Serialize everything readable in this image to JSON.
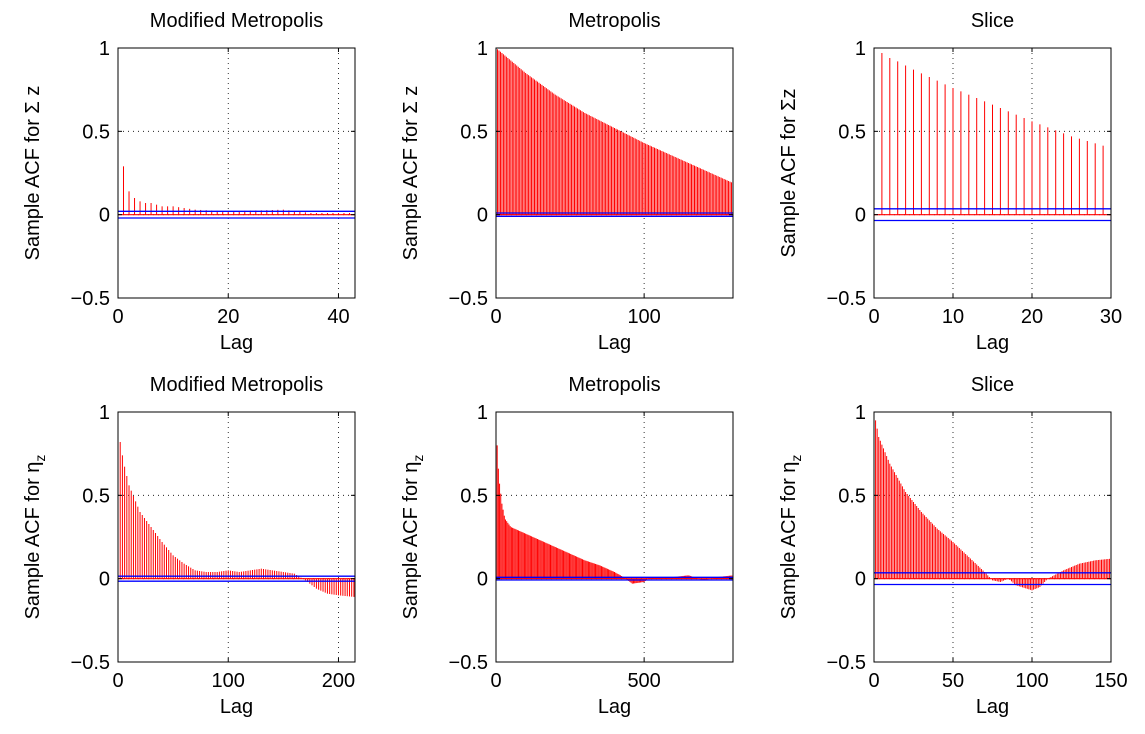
{
  "figure": {
    "background": "#ffffff",
    "stem_color": "#ff0000",
    "bound_color": "#0000ff"
  },
  "chart_data": [
    {
      "type": "bar",
      "title": "Modified Metropolis",
      "xlabel": "Lag",
      "ylabel": "Sample ACF for Σ z",
      "xlim": [
        0,
        43
      ],
      "ylim": [
        -0.5,
        1
      ],
      "xticks": [
        0,
        20,
        40
      ],
      "yticks": [
        -0.5,
        0,
        0.5,
        1
      ],
      "xtick_labels": [
        "0",
        "20",
        "40"
      ],
      "ytick_labels": [
        "−0.5",
        "0",
        "0.5",
        "1"
      ],
      "grid": "dotted",
      "confidence_bounds": [
        0.02,
        -0.02
      ],
      "acf": {
        "n_lags": 43,
        "points": [
          [
            0,
            1
          ],
          [
            1,
            0.29
          ],
          [
            2,
            0.14
          ],
          [
            3,
            0.1
          ],
          [
            4,
            0.08
          ],
          [
            5,
            0.07
          ],
          [
            6,
            0.07
          ],
          [
            8,
            0.05
          ],
          [
            10,
            0.05
          ],
          [
            12,
            0.04
          ],
          [
            14,
            0.03
          ],
          [
            20,
            0.02
          ],
          [
            30,
            0.03
          ],
          [
            35,
            0.01
          ],
          [
            40,
            0.01
          ],
          [
            43,
            0.01
          ]
        ]
      }
    },
    {
      "type": "bar",
      "title": "Metropolis",
      "xlabel": "Lag",
      "ylabel": "Sample ACF for Σ z",
      "xlim": [
        0,
        160
      ],
      "ylim": [
        -0.5,
        1
      ],
      "xticks": [
        0,
        100
      ],
      "yticks": [
        -0.5,
        0,
        0.5,
        1
      ],
      "xtick_labels": [
        "0",
        "100"
      ],
      "ytick_labels": [
        "−0.5",
        "0",
        "0.5",
        "1"
      ],
      "grid": "dotted",
      "confidence_bounds": [
        0.01,
        -0.01
      ],
      "acf": {
        "n_lags": 160,
        "points": [
          [
            0,
            1
          ],
          [
            20,
            0.85
          ],
          [
            40,
            0.72
          ],
          [
            60,
            0.61
          ],
          [
            80,
            0.52
          ],
          [
            100,
            0.43
          ],
          [
            120,
            0.35
          ],
          [
            140,
            0.27
          ],
          [
            160,
            0.19
          ]
        ]
      }
    },
    {
      "type": "bar",
      "title": "Slice",
      "xlabel": "Lag",
      "ylabel": "Sample ACF for Σz",
      "xlim": [
        0,
        30
      ],
      "ylim": [
        -0.5,
        1
      ],
      "xticks": [
        0,
        10,
        20,
        30
      ],
      "yticks": [
        -0.5,
        0,
        0.5,
        1
      ],
      "xtick_labels": [
        "0",
        "10",
        "20",
        "30"
      ],
      "ytick_labels": [
        "−0.5",
        "0",
        "0.5",
        "1"
      ],
      "grid": "dotted",
      "confidence_bounds": [
        0.035,
        -0.035
      ],
      "acf": {
        "n_lags": 30,
        "points": [
          [
            0,
            1
          ],
          [
            1,
            0.97
          ],
          [
            2,
            0.94
          ],
          [
            3,
            0.92
          ],
          [
            5,
            0.87
          ],
          [
            10,
            0.76
          ],
          [
            15,
            0.66
          ],
          [
            20,
            0.56
          ],
          [
            25,
            0.47
          ],
          [
            30,
            0.4
          ]
        ]
      }
    },
    {
      "type": "bar",
      "title": "Modified Metropolis",
      "xlabel": "Lag",
      "ylabel": "Sample ACF for η",
      "ylabel_sub": "z",
      "xlim": [
        0,
        215
      ],
      "ylim": [
        -0.5,
        1
      ],
      "xticks": [
        0,
        100,
        200
      ],
      "yticks": [
        -0.5,
        0,
        0.5,
        1
      ],
      "xtick_labels": [
        "0",
        "100",
        "200"
      ],
      "ytick_labels": [
        "−0.5",
        "0",
        "0.5",
        "1"
      ],
      "grid": "dotted",
      "confidence_bounds": [
        0.015,
        -0.015
      ],
      "acf": {
        "n_lags": 215,
        "points": [
          [
            0,
            1
          ],
          [
            2,
            0.82
          ],
          [
            5,
            0.7
          ],
          [
            10,
            0.56
          ],
          [
            20,
            0.4
          ],
          [
            30,
            0.31
          ],
          [
            40,
            0.22
          ],
          [
            50,
            0.14
          ],
          [
            60,
            0.09
          ],
          [
            70,
            0.05
          ],
          [
            80,
            0.04
          ],
          [
            90,
            0.04
          ],
          [
            100,
            0.05
          ],
          [
            110,
            0.04
          ],
          [
            120,
            0.05
          ],
          [
            130,
            0.06
          ],
          [
            140,
            0.05
          ],
          [
            150,
            0.04
          ],
          [
            160,
            0.03
          ],
          [
            170,
            -0.01
          ],
          [
            180,
            -0.06
          ],
          [
            190,
            -0.09
          ],
          [
            200,
            -0.1
          ],
          [
            215,
            -0.11
          ]
        ]
      }
    },
    {
      "type": "bar",
      "title": "Metropolis",
      "xlabel": "Lag",
      "ylabel": "Sample ACF for η",
      "ylabel_sub": "z",
      "xlim": [
        0,
        800
      ],
      "ylim": [
        -0.5,
        1
      ],
      "xticks": [
        0,
        500
      ],
      "yticks": [
        -0.5,
        0,
        0.5,
        1
      ],
      "xtick_labels": [
        "0",
        "500"
      ],
      "ytick_labels": [
        "−0.5",
        "0",
        "0.5",
        "1"
      ],
      "grid": "dotted",
      "confidence_bounds": [
        0.008,
        -0.008
      ],
      "acf": {
        "n_lags": 800,
        "points": [
          [
            0,
            1
          ],
          [
            5,
            0.75
          ],
          [
            10,
            0.6
          ],
          [
            20,
            0.45
          ],
          [
            30,
            0.36
          ],
          [
            50,
            0.31
          ],
          [
            100,
            0.27
          ],
          [
            150,
            0.23
          ],
          [
            200,
            0.19
          ],
          [
            250,
            0.15
          ],
          [
            300,
            0.11
          ],
          [
            350,
            0.08
          ],
          [
            400,
            0.04
          ],
          [
            430,
            0.01
          ],
          [
            460,
            -0.03
          ],
          [
            500,
            -0.02
          ],
          [
            520,
            0.01
          ],
          [
            600,
            0.01
          ],
          [
            650,
            0.02
          ],
          [
            700,
            -0.01
          ],
          [
            750,
            0.01
          ],
          [
            800,
            0.02
          ]
        ]
      }
    },
    {
      "type": "bar",
      "title": "Slice",
      "xlabel": "Lag",
      "ylabel": "Sample ACF for η",
      "ylabel_sub": "z",
      "xlim": [
        0,
        150
      ],
      "ylim": [
        -0.5,
        1
      ],
      "xticks": [
        0,
        50,
        100,
        150
      ],
      "yticks": [
        -0.5,
        0,
        0.5,
        1
      ],
      "xtick_labels": [
        "0",
        "50",
        "100",
        "150"
      ],
      "ytick_labels": [
        "−0.5",
        "0",
        "0.5",
        "1"
      ],
      "grid": "dotted",
      "confidence_bounds": [
        0.035,
        -0.035
      ],
      "acf": {
        "n_lags": 150,
        "points": [
          [
            0,
            1
          ],
          [
            3,
            0.85
          ],
          [
            10,
            0.69
          ],
          [
            20,
            0.52
          ],
          [
            30,
            0.4
          ],
          [
            40,
            0.3
          ],
          [
            50,
            0.22
          ],
          [
            60,
            0.13
          ],
          [
            70,
            0.04
          ],
          [
            75,
            -0.01
          ],
          [
            80,
            -0.02
          ],
          [
            85,
            0.0
          ],
          [
            90,
            -0.04
          ],
          [
            100,
            -0.07
          ],
          [
            105,
            -0.05
          ],
          [
            110,
            0.0
          ],
          [
            120,
            0.05
          ],
          [
            130,
            0.09
          ],
          [
            140,
            0.11
          ],
          [
            150,
            0.12
          ]
        ]
      }
    }
  ]
}
